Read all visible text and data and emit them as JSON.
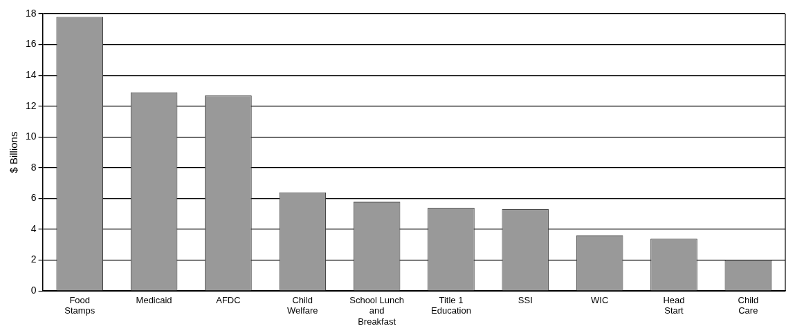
{
  "chart_data": {
    "type": "bar",
    "ylabel": "$ Billions",
    "categories": [
      "Food\nStamps",
      "Medicaid",
      "AFDC",
      "Child\nWelfare",
      "School Lunch\nand\nBreakfast",
      "Title 1\nEducation",
      "SSI",
      "WIC",
      "Head\nStart",
      "Child\nCare"
    ],
    "values": [
      17.8,
      12.9,
      12.7,
      6.4,
      5.8,
      5.4,
      5.3,
      3.6,
      3.4,
      2.0
    ],
    "color": "#999999",
    "ylim": [
      0,
      18
    ],
    "yticks": [
      0,
      2,
      4,
      6,
      8,
      10,
      12,
      14,
      16,
      18
    ],
    "grid": "y",
    "legend": false
  }
}
